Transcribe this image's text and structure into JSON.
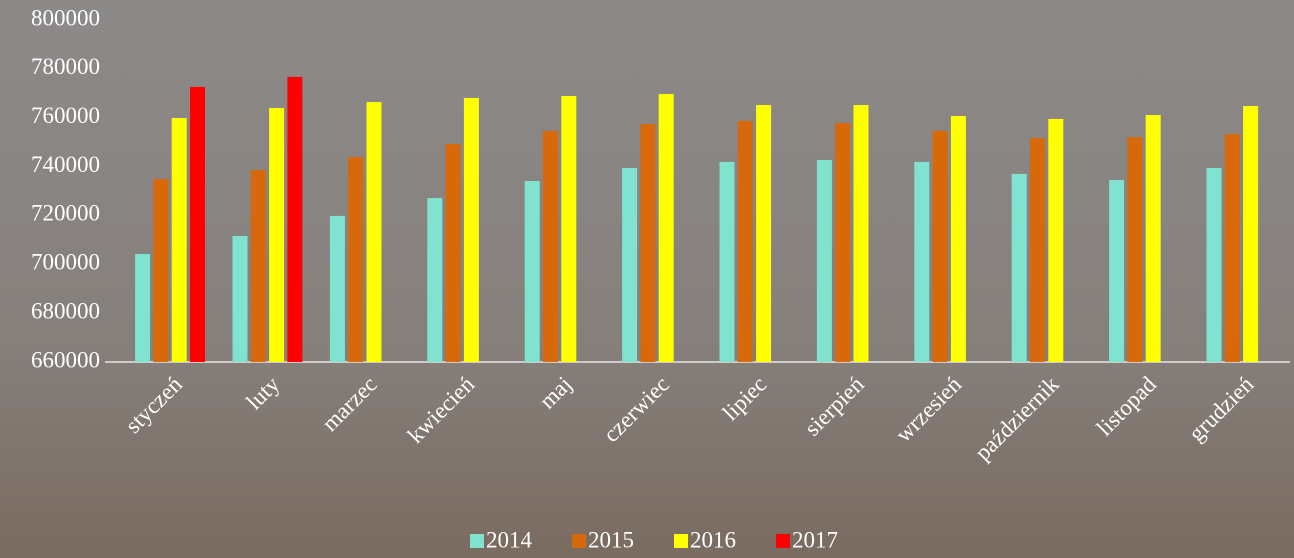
{
  "chart_data": {
    "type": "bar",
    "categories": [
      "styczeń",
      "luty",
      "marzec",
      "kwiecień",
      "maj",
      "czerwiec",
      "lipiec",
      "sierpień",
      "wrzesień",
      "październik",
      "listopad",
      "grudzień"
    ],
    "series": [
      {
        "name": "2014",
        "color": "#7fe3cf",
        "values": [
          704200,
          711600,
          719800,
          727100,
          734100,
          739400,
          741900,
          742700,
          741900,
          737000,
          734500,
          739400
        ]
      },
      {
        "name": "2015",
        "color": "#d8690a",
        "values": [
          734900,
          738600,
          743900,
          749200,
          754600,
          757400,
          758700,
          757800,
          754600,
          751700,
          752100,
          753300
        ]
      },
      {
        "name": "2016",
        "color": "#ffff00",
        "values": [
          759900,
          764000,
          766400,
          768100,
          768900,
          769700,
          765200,
          765200,
          760700,
          759500,
          761100,
          764800
        ]
      },
      {
        "name": "2017",
        "color": "#ff0000",
        "values": [
          772600,
          776700,
          null,
          null,
          null,
          null,
          null,
          null,
          null,
          null,
          null,
          null
        ]
      }
    ],
    "ylim": [
      660000,
      800000
    ],
    "yticks": [
      660000,
      680000,
      700000,
      720000,
      740000,
      760000,
      780000,
      800000
    ],
    "grid": false
  }
}
